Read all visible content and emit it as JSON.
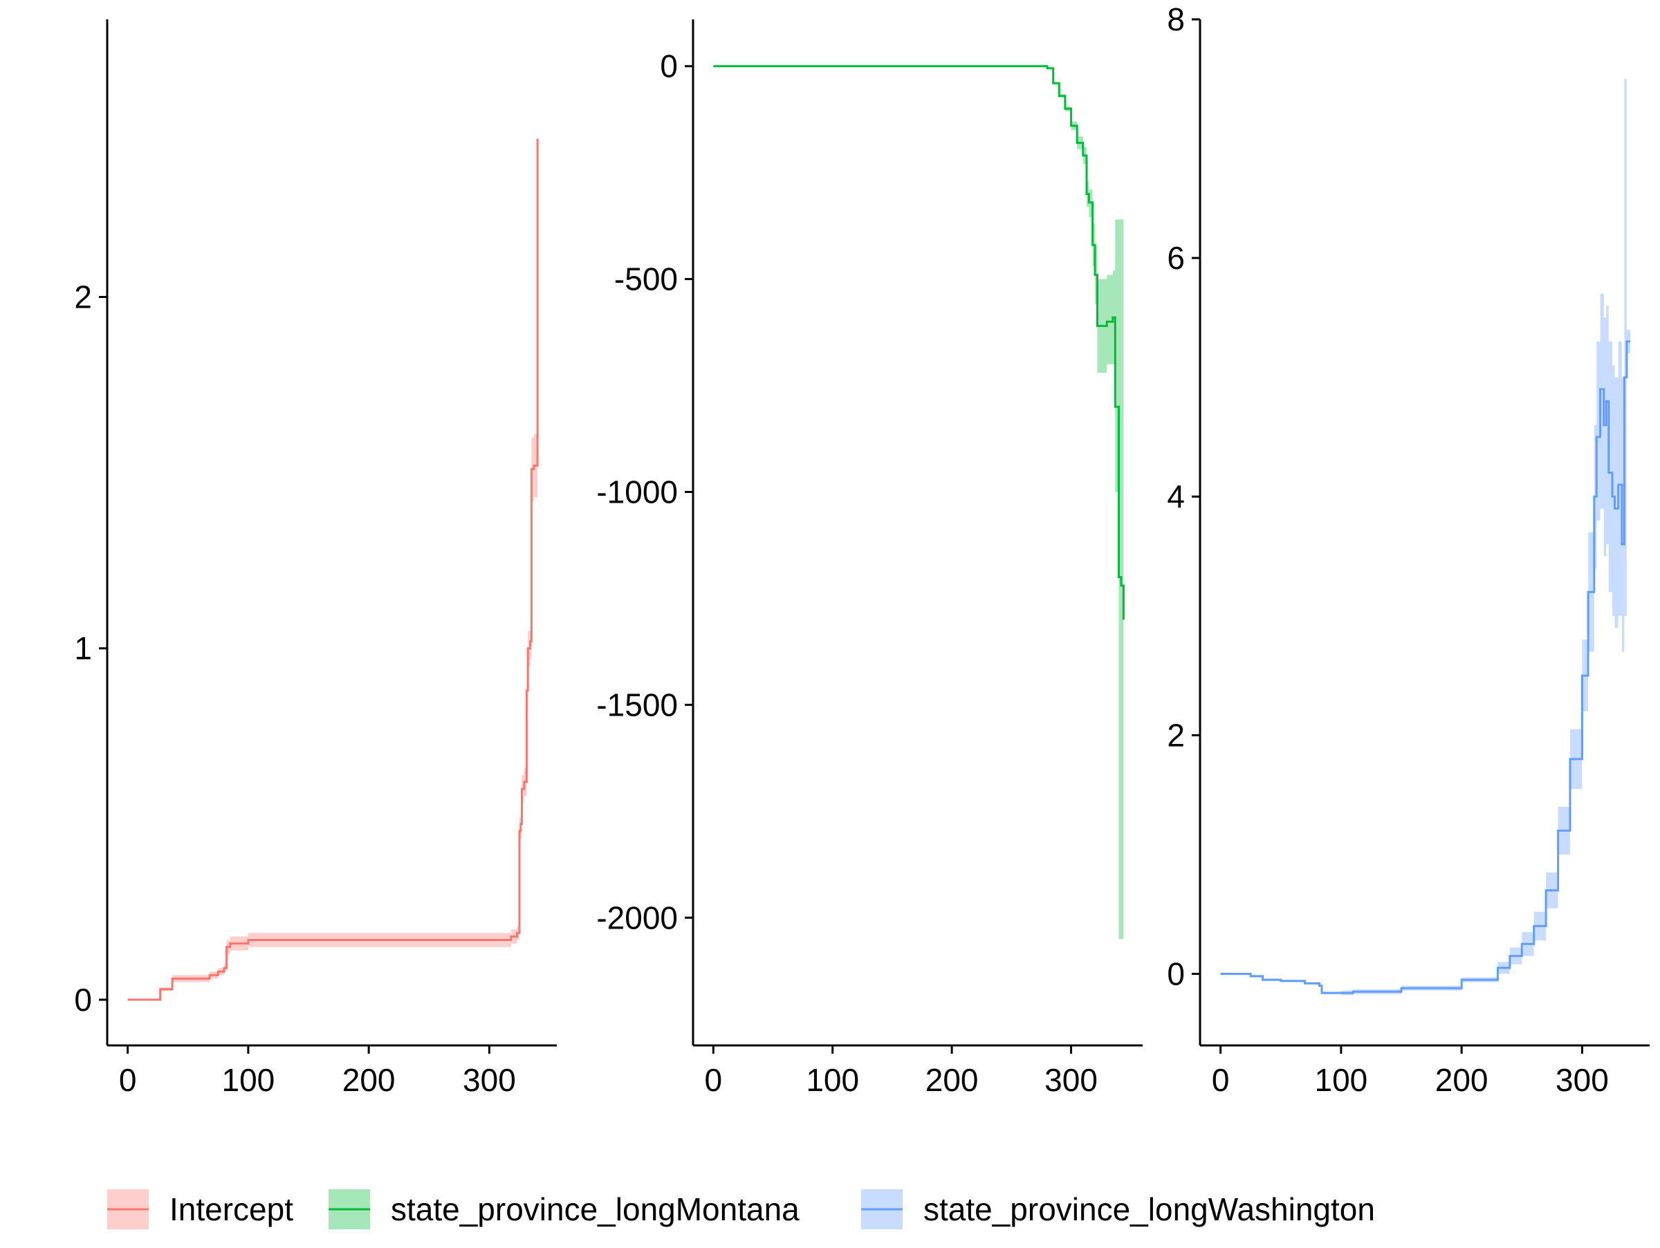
{
  "chart_data": [
    {
      "type": "line",
      "title": "",
      "xlabel": "",
      "ylabel": "",
      "series_name": "Intercept",
      "color": "#F8766D",
      "band_color": "#F8766D",
      "xlim": [
        -17,
        356
      ],
      "ylim": [
        -0.13,
        2.79
      ],
      "xticks": [
        0,
        100,
        200,
        300
      ],
      "xtick_labels": [
        "0",
        "100",
        "200",
        "300"
      ],
      "yticks": [
        0,
        1,
        2
      ],
      "ytick_labels": [
        "0",
        "1",
        "2"
      ],
      "x": [
        0,
        25,
        27,
        35,
        37,
        60,
        68,
        75,
        80,
        82,
        85,
        100,
        150,
        200,
        250,
        300,
        318,
        323,
        325,
        326,
        327,
        329,
        331,
        332,
        334,
        335,
        337,
        338,
        340
      ],
      "y": [
        0,
        0,
        0.03,
        0.03,
        0.06,
        0.06,
        0.07,
        0.08,
        0.09,
        0.15,
        0.16,
        0.17,
        0.17,
        0.17,
        0.17,
        0.17,
        0.18,
        0.19,
        0.48,
        0.5,
        0.6,
        0.62,
        0.88,
        1.0,
        1.02,
        1.51,
        1.52,
        1.52,
        2.45
      ],
      "lower": [
        0,
        0,
        0.025,
        0.025,
        0.05,
        0.05,
        0.06,
        0.07,
        0.08,
        0.13,
        0.14,
        0.15,
        0.15,
        0.15,
        0.15,
        0.15,
        0.16,
        0.17,
        0.44,
        0.46,
        0.56,
        0.58,
        0.82,
        0.95,
        0.97,
        1.42,
        1.43,
        1.43,
        2.45
      ],
      "upper": [
        0,
        0,
        0.035,
        0.035,
        0.07,
        0.07,
        0.08,
        0.09,
        0.1,
        0.17,
        0.18,
        0.19,
        0.19,
        0.19,
        0.19,
        0.19,
        0.2,
        0.21,
        0.52,
        0.54,
        0.64,
        0.66,
        0.94,
        1.05,
        1.07,
        1.6,
        1.61,
        1.61,
        2.45
      ]
    },
    {
      "type": "line",
      "title": "",
      "xlabel": "",
      "ylabel": "",
      "series_name": "state_province_longMontana",
      "color": "#00BA38",
      "band_color": "#00BA38",
      "xlim": [
        -17,
        360
      ],
      "ylim": [
        -2300,
        110
      ],
      "xticks": [
        0,
        100,
        200,
        300
      ],
      "xtick_labels": [
        "0",
        "100",
        "200",
        "300"
      ],
      "yticks": [
        0,
        -500,
        -1000,
        -1500,
        -2000
      ],
      "ytick_labels": [
        "0",
        "-500",
        "-1000",
        "-1500",
        "-2000"
      ],
      "x": [
        0,
        100,
        200,
        270,
        280,
        285,
        290,
        295,
        300,
        305,
        310,
        313,
        315,
        318,
        320,
        322,
        325,
        330,
        335,
        337,
        340,
        342,
        344
      ],
      "y": [
        0,
        0,
        0,
        0,
        -5,
        -40,
        -70,
        -100,
        -140,
        -180,
        -210,
        -300,
        -320,
        -420,
        -490,
        -610,
        -610,
        -600,
        -590,
        -800,
        -1200,
        -1220,
        -1300
      ],
      "lower": [
        0,
        0,
        0,
        0,
        -5,
        -42,
        -74,
        -106,
        -150,
        -195,
        -230,
        -330,
        -355,
        -470,
        -560,
        -720,
        -720,
        -700,
        -700,
        -1000,
        -2050,
        -2050,
        -1300
      ],
      "upper": [
        0,
        0,
        0,
        0,
        -5,
        -38,
        -66,
        -94,
        -130,
        -165,
        -190,
        -270,
        -290,
        -370,
        -420,
        -500,
        -500,
        -490,
        -480,
        -360,
        -360,
        -360,
        -1300
      ]
    },
    {
      "type": "line",
      "title": "",
      "xlabel": "",
      "ylabel": "",
      "series_name": "state_province_longWashington",
      "color": "#619CFF",
      "band_color": "#619CFF",
      "xlim": [
        -17,
        356
      ],
      "ylim": [
        -0.6,
        8.0
      ],
      "xticks": [
        0,
        100,
        200,
        300
      ],
      "xtick_labels": [
        "0",
        "100",
        "200",
        "300"
      ],
      "yticks": [
        0,
        2,
        4,
        6,
        8
      ],
      "ytick_labels": [
        "0",
        "2",
        "4",
        "6",
        "8"
      ],
      "x": [
        0,
        25,
        35,
        50,
        70,
        82,
        84,
        100,
        110,
        150,
        200,
        230,
        240,
        250,
        260,
        270,
        280,
        290,
        300,
        305,
        310,
        312,
        315,
        318,
        320,
        322,
        325,
        327,
        330,
        333,
        335,
        337,
        340
      ],
      "y": [
        0,
        -0.02,
        -0.05,
        -0.06,
        -0.08,
        -0.1,
        -0.16,
        -0.16,
        -0.15,
        -0.12,
        -0.05,
        0.05,
        0.15,
        0.25,
        0.4,
        0.7,
        1.2,
        1.8,
        2.5,
        3.2,
        4.0,
        4.5,
        4.9,
        4.6,
        4.8,
        4.2,
        4.0,
        3.9,
        4.1,
        3.6,
        5.0,
        5.3,
        5.3
      ],
      "lower": [
        0,
        -0.03,
        -0.06,
        -0.07,
        -0.09,
        -0.11,
        -0.17,
        -0.18,
        -0.17,
        -0.14,
        -0.07,
        0.0,
        0.08,
        0.15,
        0.28,
        0.55,
        1.0,
        1.55,
        2.2,
        2.7,
        3.4,
        3.8,
        3.9,
        3.5,
        3.6,
        3.2,
        3.0,
        2.9,
        3.0,
        2.7,
        3.0,
        5.2,
        5.2
      ],
      "upper": [
        0,
        -0.01,
        -0.04,
        -0.05,
        -0.07,
        -0.09,
        -0.15,
        -0.14,
        -0.13,
        -0.1,
        -0.03,
        0.1,
        0.22,
        0.35,
        0.52,
        0.85,
        1.4,
        2.05,
        2.8,
        3.7,
        4.6,
        5.3,
        5.7,
        5.5,
        5.6,
        5.3,
        5.1,
        5.0,
        5.3,
        5.0,
        7.5,
        5.4,
        5.4
      ]
    }
  ],
  "legend": {
    "position": "bottom",
    "items": [
      {
        "label": "Intercept",
        "color": "#F8766D"
      },
      {
        "label": "state_province_longMontana",
        "color": "#00BA38"
      },
      {
        "label": "state_province_longWashington",
        "color": "#619CFF"
      }
    ]
  }
}
